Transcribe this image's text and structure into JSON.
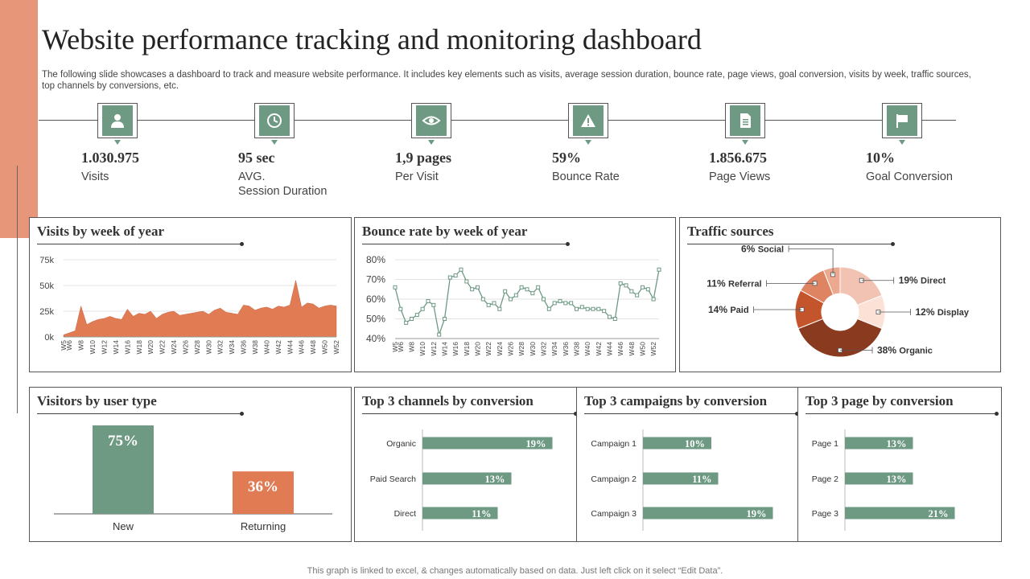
{
  "title": "Website performance tracking and monitoring dashboard",
  "description": "The following slide showcases a dashboard to track and measure website performance. It includes key elements such as visits, average session duration, bounce rate, page views, goal conversion, visits by week, traffic sources, top channels by conversions, etc.",
  "kpis": [
    {
      "value": "1.030.975",
      "label": "Visits",
      "icon": "user-icon"
    },
    {
      "value": "95 sec",
      "label": "AVG.",
      "label2": "Session Duration",
      "icon": "clock-icon"
    },
    {
      "value": "1,9 pages",
      "label": "Per Visit",
      "icon": "eye-icon"
    },
    {
      "value": "59%",
      "label": "Bounce Rate",
      "icon": "warning-icon"
    },
    {
      "value": "1.856.675",
      "label": "Page Views",
      "icon": "document-icon"
    },
    {
      "value": "10%",
      "label": "Goal Conversion",
      "icon": "flag-icon"
    }
  ],
  "panels": {
    "visits": "Visits by week of year",
    "bounce": "Bounce rate by week of year",
    "traffic": "Traffic sources",
    "visitors": "Visitors by user type",
    "channels": "Top 3 channels by conversion",
    "campaigns": "Top 3 campaigns by conversion",
    "pages": "Top 3 page by conversion"
  },
  "colors": {
    "accent": "#E8967A",
    "green": "#6E9A84",
    "orange": "#E07B53"
  },
  "chart_data": [
    {
      "id": "visits",
      "type": "area",
      "title": "Visits by week of year",
      "categories": [
        "W5",
        "W6",
        "W7",
        "W8",
        "W9",
        "W10",
        "W11",
        "W12",
        "W13",
        "W14",
        "W15",
        "W16",
        "W17",
        "W18",
        "W19",
        "W20",
        "W21",
        "W22",
        "W23",
        "W24",
        "W25",
        "W26",
        "W27",
        "W28",
        "W29",
        "W30",
        "W31",
        "W32",
        "W33",
        "W34",
        "W35",
        "W36",
        "W37",
        "W38",
        "W39",
        "W40",
        "W41",
        "W42",
        "W43",
        "W44",
        "W45",
        "W46",
        "W47",
        "W48",
        "W49",
        "W50",
        "W51",
        "W52"
      ],
      "tick_labels": [
        "W5",
        "W6",
        "W8",
        "W10",
        "W12",
        "W14",
        "W16",
        "W18",
        "W20",
        "W22",
        "W24",
        "W26",
        "W28",
        "W30",
        "W32",
        "W34",
        "W36",
        "W38",
        "W40",
        "W42",
        "W44",
        "W46",
        "W48",
        "W50",
        "W52"
      ],
      "values": [
        2,
        4,
        6,
        30,
        12,
        15,
        17,
        18,
        20,
        18,
        17,
        27,
        20,
        23,
        22,
        25,
        18,
        22,
        24,
        25,
        21,
        22,
        23,
        24,
        25,
        22,
        26,
        28,
        24,
        23,
        22,
        31,
        30,
        26,
        28,
        29,
        27,
        30,
        29,
        31,
        55,
        29,
        33,
        32,
        28,
        30,
        31,
        30
      ],
      "ytick_labels": [
        "0k",
        "25k",
        "50k",
        "75k"
      ],
      "ylim": [
        0,
        75
      ]
    },
    {
      "id": "bounce",
      "type": "line",
      "title": "Bounce rate by week of year",
      "categories": [
        "W5",
        "W6",
        "W7",
        "W8",
        "W9",
        "W10",
        "W11",
        "W12",
        "W13",
        "W14",
        "W15",
        "W16",
        "W17",
        "W18",
        "W19",
        "W20",
        "W21",
        "W22",
        "W23",
        "W24",
        "W25",
        "W26",
        "W27",
        "W28",
        "W29",
        "W30",
        "W31",
        "W32",
        "W33",
        "W34",
        "W35",
        "W36",
        "W37",
        "W38",
        "W39",
        "W40",
        "W41",
        "W42",
        "W43",
        "W44",
        "W45",
        "W46",
        "W47",
        "W48",
        "W49",
        "W50",
        "W51",
        "W52",
        "W53"
      ],
      "tick_labels": [
        "W5",
        "W6",
        "W8",
        "W10",
        "W12",
        "W14",
        "W16",
        "W18",
        "W20",
        "W22",
        "W24",
        "W26",
        "W28",
        "W30",
        "W32",
        "W34",
        "W36",
        "W38",
        "W40",
        "W42",
        "W44",
        "W46",
        "W48",
        "W50",
        "W52"
      ],
      "values": [
        66,
        55,
        48,
        50,
        52,
        55,
        59,
        57,
        42,
        50,
        71,
        72,
        75,
        69,
        65,
        66,
        60,
        57,
        58,
        55,
        64,
        60,
        62,
        66,
        65,
        63,
        66,
        60,
        55,
        58,
        59,
        58,
        58,
        55,
        56,
        55,
        55,
        55,
        54,
        51,
        50,
        68,
        67,
        64,
        62,
        66,
        65,
        60,
        75
      ],
      "ytick_labels": [
        "40%",
        "50%",
        "60%",
        "70%",
        "80%"
      ],
      "ylim": [
        40,
        80
      ]
    },
    {
      "id": "traffic",
      "type": "pie",
      "title": "Traffic sources",
      "slices": [
        {
          "name": "Direct",
          "pct": "19%",
          "value": 19,
          "color": "#F2C3B2"
        },
        {
          "name": "Display",
          "pct": "12%",
          "value": 12,
          "color": "#FBE1D6"
        },
        {
          "name": "Organic",
          "pct": "38%",
          "value": 38,
          "color": "#8A3A1E"
        },
        {
          "name": "Paid",
          "pct": "14%",
          "value": 14,
          "color": "#C4542B"
        },
        {
          "name": "Referral",
          "pct": "11%",
          "value": 11,
          "color": "#DE8463"
        },
        {
          "name": "Social",
          "pct": "6%",
          "value": 6,
          "color": "#ECA98F"
        }
      ]
    },
    {
      "id": "visitors",
      "type": "bar",
      "title": "Visitors by user type",
      "categories": [
        "New",
        "Returning"
      ],
      "values": [
        75,
        36
      ],
      "labels": [
        "75%",
        "36%"
      ],
      "colors": [
        "#6E9A84",
        "#E07B53"
      ]
    },
    {
      "id": "channels",
      "type": "bar",
      "title": "Top 3 channels by conversion",
      "categories": [
        "Organic",
        "Paid Search",
        "Direct"
      ],
      "values": [
        19,
        13,
        11
      ],
      "labels": [
        "19%",
        "13%",
        "11%"
      ]
    },
    {
      "id": "campaigns",
      "type": "bar",
      "title": "Top 3 campaigns by conversion",
      "categories": [
        "Campaign 1",
        "Campaign 2",
        "Campaign 3"
      ],
      "values": [
        10,
        11,
        19
      ],
      "labels": [
        "10%",
        "11%",
        "19%"
      ]
    },
    {
      "id": "pages",
      "type": "bar",
      "title": "Top 3 page by conversion",
      "categories": [
        "Page 1",
        "Page 2",
        "Page 3"
      ],
      "values": [
        13,
        13,
        21
      ],
      "labels": [
        "13%",
        "13%",
        "21%"
      ]
    }
  ],
  "footer": "This graph is linked to excel, & changes automatically based on data. Just left click on it select “Edit Data”."
}
